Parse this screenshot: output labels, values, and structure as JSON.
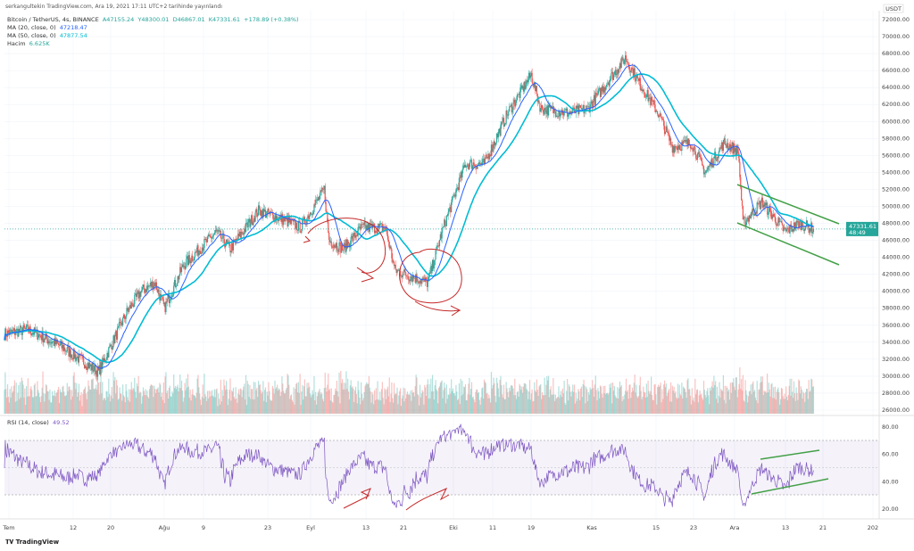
{
  "header": {
    "published": "serkangultekin TradingView.com, Ara 19, 2021 17:11 UTC+2 tarihinde yayınlandı"
  },
  "legend": {
    "symbol": "Bitcoin / TetherUS, 4s, BINANCE",
    "open": "A47155.24",
    "high": "Y48300.01",
    "low": "D46867.01",
    "close": "K47331.61",
    "change": "+178.89 (+0.38%)",
    "ma20_label": "MA (20, close, 0)",
    "ma20_value": "47218.47",
    "ma50_label": "MA (50, close, 0)",
    "ma50_value": "47877.54",
    "volume_label": "Hacim",
    "volume_value": "6.625K",
    "rsi_label": "RSI (14, close)",
    "rsi_value": "49.52"
  },
  "price_axis": {
    "currency": "USDT",
    "ticks": [
      "72000.00",
      "70000.00",
      "68000.00",
      "66000.00",
      "64000.00",
      "62000.00",
      "60000.00",
      "58000.00",
      "56000.00",
      "54000.00",
      "52000.00",
      "50000.00",
      "48000.00",
      "46000.00",
      "44000.00",
      "42000.00",
      "40000.00",
      "38000.00",
      "36000.00",
      "34000.00",
      "32000.00",
      "30000.00",
      "28000.00",
      "26000.00"
    ],
    "last_price": "47331.61",
    "countdown": "48:49"
  },
  "rsi_axis": {
    "ticks": [
      "80.00",
      "60.00",
      "40.00",
      "20.00"
    ]
  },
  "time_axis": {
    "ticks": [
      "Tem",
      "12",
      "20",
      "Ağu",
      "9",
      "23",
      "Eyl",
      "13",
      "21",
      "Eki",
      "11",
      "19",
      "Kas",
      "15",
      "23",
      "Ara",
      "13",
      "21",
      "202"
    ]
  },
  "footer": {
    "brand": "TradingView"
  },
  "colors": {
    "up": "#26a69a",
    "down": "#ef5350",
    "ma20": "#2962ff",
    "ma50": "#00bcd4",
    "rsi": "#7e57c2",
    "annotation_red": "#c62828",
    "annotation_green": "#43a047"
  },
  "chart_data": {
    "type": "candlestick",
    "interval": "4h",
    "ylim": [
      26000,
      72000
    ],
    "rsi_bands": [
      30,
      70
    ],
    "price_path": [
      [
        "2021-06-30",
        35000
      ],
      [
        "2021-07-05",
        35500
      ],
      [
        "2021-07-12",
        33500
      ],
      [
        "2021-07-20",
        30500
      ],
      [
        "2021-07-26",
        37500
      ],
      [
        "2021-07-29",
        40000
      ],
      [
        "2021-08-01",
        41000
      ],
      [
        "2021-08-03",
        38000
      ],
      [
        "2021-08-07",
        43000
      ],
      [
        "2021-08-14",
        47000
      ],
      [
        "2021-08-17",
        45000
      ],
      [
        "2021-08-23",
        49500
      ],
      [
        "2021-08-28",
        48500
      ],
      [
        "2021-09-01",
        47500
      ],
      [
        "2021-09-06",
        52000
      ],
      [
        "2021-09-07",
        46000
      ],
      [
        "2021-09-10",
        45000
      ],
      [
        "2021-09-14",
        47500
      ],
      [
        "2021-09-19",
        47500
      ],
      [
        "2021-09-21",
        42500
      ],
      [
        "2021-09-28",
        41000
      ],
      [
        "2021-10-01",
        47000
      ],
      [
        "2021-10-06",
        55000
      ],
      [
        "2021-10-10",
        55000
      ],
      [
        "2021-10-15",
        61000
      ],
      [
        "2021-10-20",
        65500
      ],
      [
        "2021-10-22",
        61500
      ],
      [
        "2021-10-28",
        61000
      ],
      [
        "2021-11-01",
        61500
      ],
      [
        "2021-11-09",
        67500
      ],
      [
        "2021-11-12",
        64500
      ],
      [
        "2021-11-16",
        61000
      ],
      [
        "2021-11-19",
        57000
      ],
      [
        "2021-11-23",
        57500
      ],
      [
        "2021-11-26",
        54000
      ],
      [
        "2021-11-30",
        57500
      ],
      [
        "2021-12-03",
        56500
      ],
      [
        "2021-12-04",
        48000
      ],
      [
        "2021-12-08",
        50500
      ],
      [
        "2021-12-13",
        47000
      ],
      [
        "2021-12-16",
        48000
      ],
      [
        "2021-12-19",
        47331
      ]
    ]
  }
}
